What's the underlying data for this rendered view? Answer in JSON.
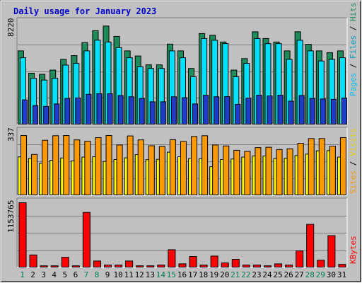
{
  "chart_data": [
    {
      "type": "bar",
      "title": "Daily usage for January 2023",
      "ymax_label": "8220",
      "series_labels": [
        "Pages",
        "Files",
        "Hits"
      ],
      "colors": {
        "hits": "#1e8c5a",
        "files": "#00e0ff",
        "pages": "#1e3cc8"
      },
      "categories": [
        "1",
        "2",
        "3",
        "4",
        "5",
        "6",
        "7",
        "8",
        "9",
        "10",
        "11",
        "12",
        "13",
        "14",
        "15",
        "16",
        "17",
        "18",
        "19",
        "20",
        "21",
        "22",
        "23",
        "24",
        "25",
        "26",
        "27",
        "28",
        "29",
        "30",
        "31"
      ],
      "weekend_days": [
        "1",
        "7",
        "8",
        "14",
        "15",
        "21",
        "22",
        "28",
        "29"
      ],
      "ylim": [
        0,
        8220
      ],
      "series": [
        {
          "name": "Hits",
          "values": [
            5930,
            4140,
            4050,
            4390,
            5250,
            5550,
            6590,
            7550,
            7920,
            7090,
            5930,
            5520,
            4810,
            4810,
            6470,
            5930,
            4520,
            7320,
            7180,
            6640,
            4390,
            5310,
            7460,
            6920,
            6640,
            5930,
            7460,
            6460,
            5930,
            5790,
            5930
          ]
        },
        {
          "name": "Files",
          "values": [
            5380,
            3730,
            3590,
            3730,
            4790,
            4930,
            5930,
            6790,
            6640,
            6190,
            5380,
            4660,
            4520,
            4520,
            5930,
            5380,
            3860,
            6920,
            6780,
            6510,
            3860,
            4930,
            6920,
            6510,
            6510,
            5250,
            6780,
            5930,
            5120,
            5250,
            5380
          ]
        },
        {
          "name": "Pages",
          "values": [
            2000,
            1550,
            1480,
            1680,
            2120,
            2160,
            2450,
            2500,
            2500,
            2350,
            2250,
            2120,
            1850,
            1850,
            2250,
            2180,
            1680,
            2380,
            2250,
            2270,
            1650,
            2150,
            2380,
            2320,
            2380,
            1900,
            2350,
            2120,
            2080,
            2050,
            2150
          ]
        }
      ]
    },
    {
      "type": "bar",
      "ymax_label": "337",
      "series_labels": [
        "Sites",
        "Visits"
      ],
      "colors": {
        "visits": "#ff9900",
        "sites": "#ffff00"
      },
      "ylim": [
        0,
        337
      ],
      "series": [
        {
          "name": "Visits",
          "values": [
            318,
            218,
            293,
            317,
            318,
            295,
            288,
            307,
            318,
            268,
            316,
            295,
            264,
            260,
            296,
            287,
            313,
            317,
            268,
            263,
            240,
            234,
            254,
            256,
            244,
            248,
            277,
            302,
            302,
            262,
            307
          ]
        },
        {
          "name": "Sites",
          "values": [
            205,
            198,
            171,
            187,
            199,
            184,
            204,
            206,
            181,
            191,
            200,
            217,
            190,
            192,
            230,
            206,
            196,
            195,
            153,
            191,
            194,
            204,
            210,
            210,
            196,
            198,
            212,
            220,
            237,
            238,
            204
          ]
        }
      ]
    },
    {
      "type": "bar",
      "ymax_label": "1153765",
      "series_labels": [
        "KBytes"
      ],
      "colors": {
        "kbytes": "#ff0000"
      },
      "ylim": [
        0,
        1153765
      ],
      "series": [
        {
          "name": "KBytes",
          "values": [
            1153765,
            228000,
            35000,
            35000,
            186000,
            35000,
            982000,
            120000,
            48000,
            48000,
            120000,
            35000,
            35000,
            48000,
            320000,
            70000,
            200000,
            48000,
            208000,
            86000,
            150000,
            48000,
            48000,
            35000,
            70000,
            48000,
            300000,
            770000,
            135000,
            570000,
            60000
          ]
        }
      ]
    }
  ]
}
